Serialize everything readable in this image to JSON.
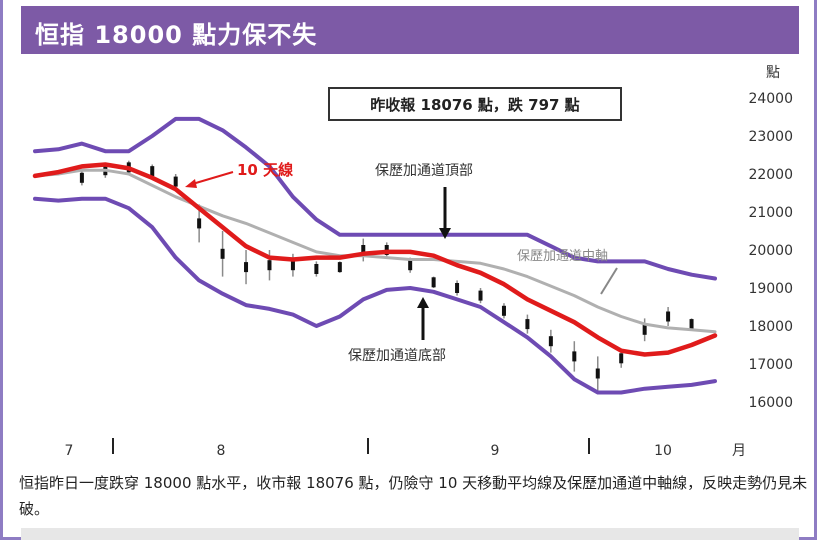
{
  "header": {
    "title": "恒指 18000 點力保不失"
  },
  "chart_data": {
    "type": "line",
    "title": "恒指 18000 點力保不失",
    "y_unit": "點",
    "ylim": [
      16000,
      24000
    ],
    "yticks": [
      24000,
      23000,
      22000,
      21000,
      20000,
      19000,
      18000,
      17000,
      16000
    ],
    "month_labels": [
      "7",
      "8",
      "9",
      "10"
    ],
    "x_unit": "月",
    "close_box": "昨收報 18076 點，跌 797 點",
    "annotations": {
      "ma10": "10 天線",
      "upper": "保歷加通道頂部",
      "middle": "保歷加通道中軸",
      "lower": "保歷加通道底部"
    },
    "series": [
      {
        "name": "10 天線",
        "color": "#e01b1b",
        "values": [
          21950,
          22050,
          22200,
          22250,
          22150,
          21900,
          21600,
          21100,
          20600,
          20100,
          19800,
          19750,
          19800,
          19800,
          19900,
          19950,
          19950,
          19850,
          19600,
          19400,
          19100,
          18700,
          18400,
          18100,
          17700,
          17350,
          17250,
          17300,
          17500,
          17750
        ]
      },
      {
        "name": "保歷加通道頂部",
        "color": "#6e4bb3",
        "values": [
          22600,
          22650,
          22800,
          22600,
          22600,
          23000,
          23450,
          23450,
          23150,
          22700,
          22200,
          21400,
          20800,
          20400,
          20400,
          20400,
          20400,
          20400,
          20400,
          20400,
          20400,
          20400,
          20100,
          19800,
          19700,
          19700,
          19700,
          19500,
          19350,
          19250
        ]
      },
      {
        "name": "保歷加通道中軸",
        "color": "#b0b0b0",
        "values": [
          21950,
          22000,
          22100,
          22100,
          22000,
          21700,
          21400,
          21150,
          20900,
          20700,
          20450,
          20200,
          19950,
          19850,
          19850,
          19800,
          19750,
          19750,
          19700,
          19650,
          19500,
          19300,
          19050,
          18800,
          18500,
          18250,
          18050,
          17950,
          17900,
          17850
        ]
      },
      {
        "name": "保歷加通道底部",
        "color": "#6e4bb3",
        "values": [
          21350,
          21300,
          21350,
          21350,
          21100,
          20600,
          19800,
          19200,
          18850,
          18550,
          18450,
          18300,
          18000,
          18250,
          18700,
          18950,
          19000,
          18900,
          18700,
          18500,
          18100,
          17700,
          17200,
          16600,
          16250,
          16250,
          16350,
          16400,
          16450,
          16550
        ]
      }
    ],
    "bars": [
      {
        "x": 2,
        "hi": 22100,
        "lo": 21700
      },
      {
        "x": 3,
        "hi": 22300,
        "lo": 21900
      },
      {
        "x": 4,
        "hi": 22350,
        "lo": 22000
      },
      {
        "x": 5,
        "hi": 22250,
        "lo": 21900
      },
      {
        "x": 6,
        "hi": 22000,
        "lo": 21600
      },
      {
        "x": 7,
        "hi": 21200,
        "lo": 20200
      },
      {
        "x": 8,
        "hi": 20500,
        "lo": 19300
      },
      {
        "x": 9,
        "hi": 20000,
        "lo": 19100
      },
      {
        "x": 10,
        "hi": 20000,
        "lo": 19200
      },
      {
        "x": 11,
        "hi": 19900,
        "lo": 19300
      },
      {
        "x": 12,
        "hi": 19700,
        "lo": 19300
      },
      {
        "x": 13,
        "hi": 19700,
        "lo": 19400
      },
      {
        "x": 14,
        "hi": 20300,
        "lo": 19700
      },
      {
        "x": 15,
        "hi": 20200,
        "lo": 19800
      },
      {
        "x": 16,
        "hi": 19800,
        "lo": 19400
      },
      {
        "x": 17,
        "hi": 19300,
        "lo": 19000
      },
      {
        "x": 18,
        "hi": 19200,
        "lo": 18800
      },
      {
        "x": 19,
        "hi": 19000,
        "lo": 18600
      },
      {
        "x": 20,
        "hi": 18600,
        "lo": 18200
      },
      {
        "x": 21,
        "hi": 18300,
        "lo": 17800
      },
      {
        "x": 22,
        "hi": 17900,
        "lo": 17300
      },
      {
        "x": 23,
        "hi": 17600,
        "lo": 16800
      },
      {
        "x": 24,
        "hi": 17200,
        "lo": 16300
      },
      {
        "x": 25,
        "hi": 17400,
        "lo": 16900
      },
      {
        "x": 26,
        "hi": 18200,
        "lo": 17600
      },
      {
        "x": 27,
        "hi": 18500,
        "lo": 18000
      },
      {
        "x": 28,
        "hi": 18200,
        "lo": 17900
      }
    ]
  },
  "caption": "恒指昨日一度跌穿 18000 點水平，收市報 18076 點，仍險守 10 天移動平均線及保歷加通道中軸線，反映走勢仍見未破。"
}
